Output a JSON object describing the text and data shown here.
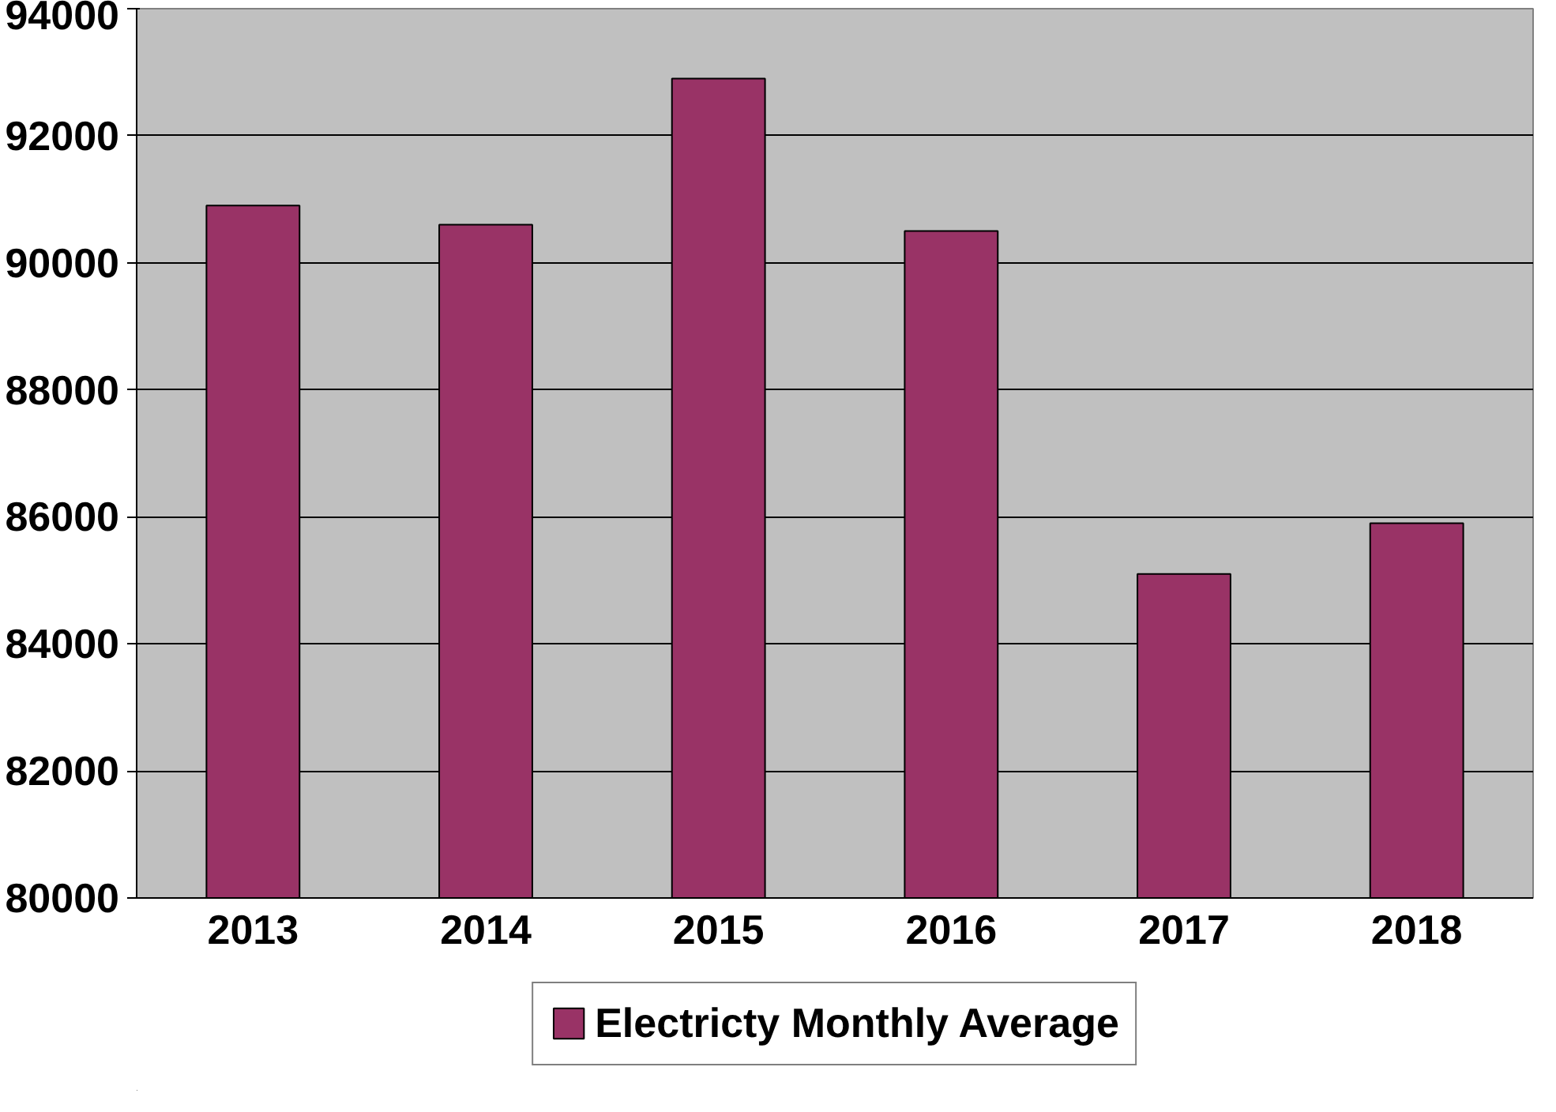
{
  "chart_data": {
    "type": "bar",
    "categories": [
      "2013",
      "2014",
      "2015",
      "2016",
      "2017",
      "2018"
    ],
    "series": [
      {
        "name": "Electricty Monthly Average",
        "color": "#993366",
        "values": [
          90900,
          90600,
          92900,
          90500,
          85100,
          85900
        ]
      }
    ],
    "ylim": [
      80000,
      94000
    ],
    "yticks": [
      80000,
      82000,
      84000,
      86000,
      88000,
      90000,
      92000,
      94000
    ],
    "grid": "y",
    "legend": "bottom"
  }
}
